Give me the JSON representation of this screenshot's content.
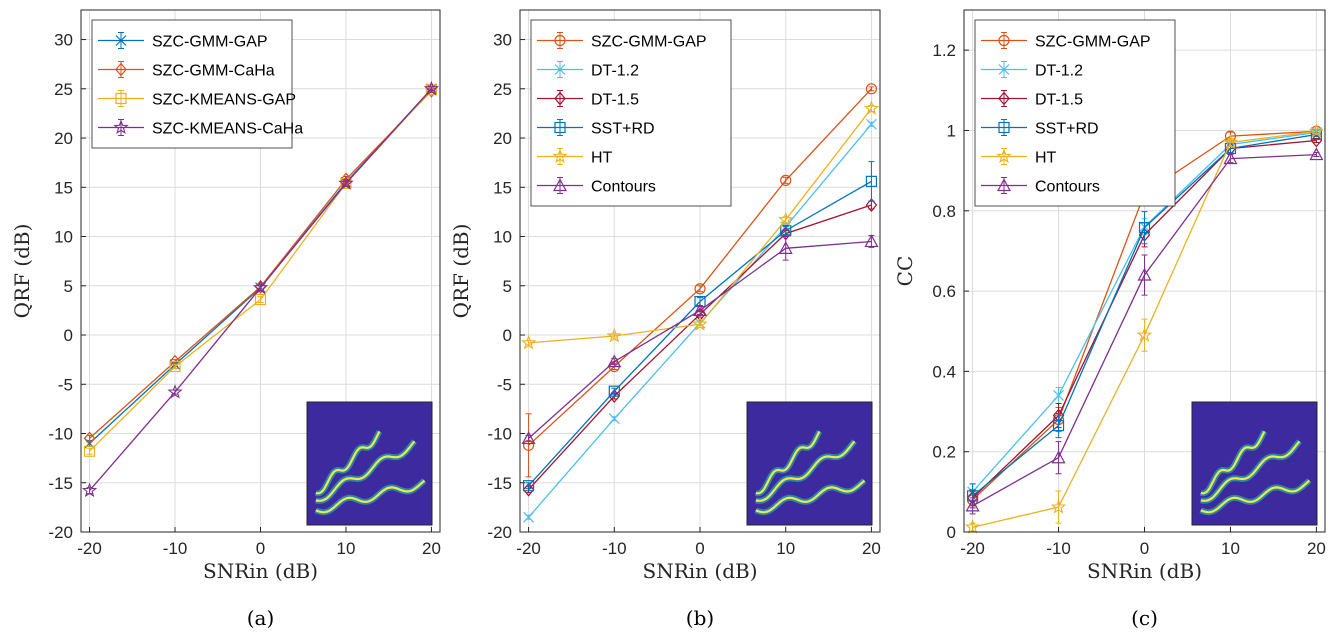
{
  "chart_data": [
    {
      "type": "line",
      "caption": "(a)",
      "xlabel": "SNRin (dB)",
      "ylabel": "QRF (dB)",
      "x": [
        -20,
        -10,
        0,
        10,
        20
      ],
      "xlim": [
        -21,
        21
      ],
      "ylim": [
        -20,
        33
      ],
      "xticks": [
        "-20",
        "-10",
        "0",
        "10",
        "20"
      ],
      "yticks": [
        "-20",
        "-15",
        "-10",
        "-5",
        "0",
        "5",
        "10",
        "15",
        "20",
        "25",
        "30"
      ],
      "grid": true,
      "legend_position": "top-left",
      "series": [
        {
          "name": "SZC-GMM-GAP",
          "color": "#0072BD",
          "marker": "x",
          "values": [
            -11,
            -3,
            4.8,
            15.5,
            25
          ],
          "errors": [
            0.3,
            0.2,
            0.3,
            0.3,
            0.2
          ]
        },
        {
          "name": "SZC-GMM-CaHa",
          "color": "#D95319",
          "marker": "diamond",
          "values": [
            -10.5,
            -2.7,
            4.9,
            15.8,
            24.8
          ],
          "errors": [
            0.3,
            0.2,
            0.3,
            0.3,
            0.2
          ]
        },
        {
          "name": "SZC-KMEANS-GAP",
          "color": "#EDB120",
          "marker": "square",
          "values": [
            -11.8,
            -3.2,
            3.6,
            15.4,
            24.9
          ],
          "errors": [
            0.3,
            0.2,
            0.3,
            0.3,
            0.2
          ]
        },
        {
          "name": "SZC-KMEANS-CaHa",
          "color": "#7E2F8E",
          "marker": "star",
          "values": [
            -15.8,
            -5.8,
            4.8,
            15.4,
            25
          ],
          "errors": [
            0.3,
            0.2,
            0.3,
            0.3,
            0.2
          ]
        }
      ],
      "inset": "wavy-chirp-image"
    },
    {
      "type": "line",
      "caption": "(b)",
      "xlabel": "SNRin (dB)",
      "ylabel": "QRF (dB)",
      "x": [
        -20,
        -10,
        0,
        10,
        20
      ],
      "xlim": [
        -21,
        21
      ],
      "ylim": [
        -20,
        33
      ],
      "xticks": [
        "-20",
        "-10",
        "0",
        "10",
        "20"
      ],
      "yticks": [
        "-20",
        "-15",
        "-10",
        "-5",
        "0",
        "5",
        "10",
        "15",
        "20",
        "25",
        "30"
      ],
      "grid": true,
      "legend_position": "top-left",
      "series": [
        {
          "name": "SZC-GMM-GAP",
          "color": "#D95319",
          "marker": "circle",
          "values": [
            -11.2,
            -3.2,
            4.7,
            15.7,
            25
          ],
          "errors": [
            3.2,
            0.3,
            0.3,
            0.3,
            0.2
          ]
        },
        {
          "name": "DT-1.2",
          "color": "#4DBEEE",
          "marker": "x",
          "values": [
            -18.5,
            -8.5,
            1.2,
            11,
            21.4
          ],
          "errors": [
            0.2,
            0.2,
            0.2,
            0.3,
            0.2
          ]
        },
        {
          "name": "DT-1.5",
          "color": "#A2142F",
          "marker": "diamond",
          "values": [
            -15.7,
            -6.2,
            2.1,
            10.3,
            13.2
          ],
          "errors": [
            0.3,
            0.3,
            0.3,
            0.3,
            0.4
          ]
        },
        {
          "name": "SST+RD",
          "color": "#0072BD",
          "marker": "square",
          "values": [
            -15.3,
            -5.7,
            3.4,
            10.6,
            15.6
          ],
          "errors": [
            0.3,
            0.3,
            0.4,
            0.4,
            2
          ]
        },
        {
          "name": "HT",
          "color": "#EDB120",
          "marker": "star",
          "values": [
            -0.8,
            -0.1,
            1.1,
            11.7,
            23
          ],
          "errors": [
            0.2,
            0.2,
            0.3,
            0.3,
            0.3
          ]
        },
        {
          "name": "Contours",
          "color": "#7E2F8E",
          "marker": "triangle",
          "values": [
            -10.5,
            -2.7,
            2.5,
            8.8,
            9.5
          ],
          "errors": [
            0.3,
            0.3,
            0.4,
            1.2,
            0.6
          ]
        }
      ],
      "inset": "wavy-chirp-image"
    },
    {
      "type": "line",
      "caption": "(c)",
      "xlabel": "SNRin (dB)",
      "ylabel": "CC",
      "x": [
        -20,
        -10,
        0,
        10,
        20
      ],
      "xlim": [
        -21,
        21
      ],
      "ylim": [
        0,
        1.3
      ],
      "xticks": [
        "-20",
        "-10",
        "0",
        "10",
        "20"
      ],
      "yticks": [
        "0",
        "0.2",
        "0.4",
        "0.6",
        "0.8",
        "1",
        "1.2"
      ],
      "grid": true,
      "legend_position": "top-left",
      "series": [
        {
          "name": "SZC-GMM-GAP",
          "color": "#D95319",
          "marker": "circle",
          "values": [
            0.08,
            0.28,
            0.843,
            0.986,
            0.998
          ],
          "errors": [
            0.02,
            0.03,
            0.02,
            0.01,
            0.005
          ]
        },
        {
          "name": "DT-1.2",
          "color": "#4DBEEE",
          "marker": "x",
          "values": [
            0.1,
            0.34,
            0.76,
            0.965,
            0.995
          ],
          "errors": [
            0.02,
            0.02,
            0.02,
            0.01,
            0.005
          ]
        },
        {
          "name": "DT-1.5",
          "color": "#A2142F",
          "marker": "diamond",
          "values": [
            0.085,
            0.29,
            0.74,
            0.955,
            0.975
          ],
          "errors": [
            0.02,
            0.03,
            0.03,
            0.01,
            0.005
          ]
        },
        {
          "name": "SST+RD",
          "color": "#0072BD",
          "marker": "square",
          "values": [
            0.09,
            0.265,
            0.758,
            0.955,
            0.99
          ],
          "errors": [
            0.03,
            0.03,
            0.04,
            0.01,
            0.005
          ]
        },
        {
          "name": "HT",
          "color": "#EDB120",
          "marker": "star",
          "values": [
            0.012,
            0.062,
            0.49,
            0.97,
            0.998
          ],
          "errors": [
            0.01,
            0.04,
            0.04,
            0.01,
            0.005
          ]
        },
        {
          "name": "Contours",
          "color": "#7E2F8E",
          "marker": "triangle",
          "values": [
            0.065,
            0.185,
            0.64,
            0.93,
            0.94
          ],
          "errors": [
            0.02,
            0.04,
            0.05,
            0.01,
            0.005
          ]
        }
      ],
      "inset": "wavy-chirp-image"
    }
  ]
}
